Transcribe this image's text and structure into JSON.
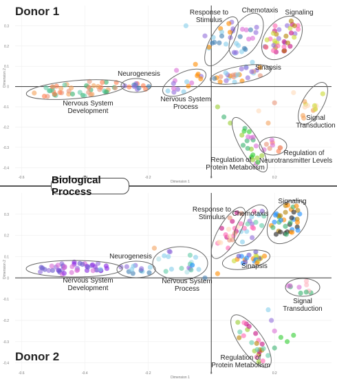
{
  "shared_title": "Biological Process",
  "chart_data": [
    {
      "type": "scatter",
      "title": "Donor 1",
      "xlabel": "Dimension 1",
      "ylabel": "Dimension 2",
      "xlim": [
        -0.62,
        0.38
      ],
      "ylim": [
        -0.45,
        0.4
      ],
      "xticks": [
        -0.6,
        -0.4,
        -0.2,
        0,
        0.2
      ],
      "xtick_labels": [
        "-0.6",
        "-0.4",
        "-0.2",
        "0",
        "0.2"
      ],
      "yticks": [
        0.3,
        0.2,
        0.1,
        0,
        -0.1,
        -0.2,
        -0.3,
        -0.4
      ],
      "ytick_labels": [
        "0.3",
        "0.2",
        "0.1",
        "0",
        "-0.1",
        "-0.2",
        "-0.3",
        "-0.4"
      ],
      "grid": true,
      "clusters": [
        {
          "name": "Nervous System Development",
          "cx": -0.45,
          "cy": -0.045,
          "rx": 0.17,
          "ry": 0.04,
          "rot": -5,
          "colors": [
            "#3cb371",
            "#e9967a",
            "#ff7f50",
            "#66cdaa",
            "#f4a460"
          ],
          "n": 46
        },
        {
          "name": "Neurogenesis",
          "cx": -0.205,
          "cy": -0.01,
          "rx": 0.04,
          "ry": 0.02,
          "rot": 0,
          "colors": [
            "#4682b4",
            "#9370db",
            "#ff7f50"
          ],
          "n": 12
        },
        {
          "name": "Nervous System Process",
          "cx": -0.15,
          "cy": 0.02,
          "rx": 0.06,
          "ry": 0.03,
          "rot": -25,
          "colors": [
            "#ff8c00",
            "#9370db",
            "#87ceeb",
            "#da70d6"
          ],
          "n": 14
        },
        {
          "name": "Response to Stimulus",
          "cx": 0.005,
          "cy": 0.17,
          "rx": 0.045,
          "ry": 0.095,
          "rot": 30,
          "colors": [
            "#9370db",
            "#87ceeb",
            "#ff8c00",
            "#4682b4"
          ],
          "n": 16
        },
        {
          "name": "Chemotaxis",
          "cx": 0.09,
          "cy": 0.24,
          "rx": 0.06,
          "ry": 0.08,
          "rot": 30,
          "colors": [
            "#da70d6",
            "#4682b4",
            "#87ceeb",
            "#9370db"
          ],
          "n": 16
        },
        {
          "name": "Signaling",
          "cx": 0.225,
          "cy": 0.22,
          "rx": 0.065,
          "ry": 0.1,
          "rot": 35,
          "colors": [
            "#c71585",
            "#ff69b4",
            "#b8860b",
            "#cddc39",
            "#9370db"
          ],
          "n": 38
        },
        {
          "name": "Sinapsis",
          "cx": 0.09,
          "cy": 0.05,
          "rx": 0.09,
          "ry": 0.03,
          "rot": -10,
          "colors": [
            "#87ceeb",
            "#9370db",
            "#ff8c00",
            "#e9967a"
          ],
          "n": 26
        },
        {
          "name": "Signal Transduction",
          "cx": 0.325,
          "cy": -0.09,
          "rx": 0.04,
          "ry": 0.1,
          "rot": 30,
          "colors": [
            "#f4a460",
            "#ffdab9",
            "#cddc39"
          ],
          "n": 14
        },
        {
          "name": "Regulation of Neurotransmitter Levels",
          "cx": 0.23,
          "cy": -0.26,
          "rx": 0.045,
          "ry": 0.03,
          "rot": 0,
          "colors": [
            "#ff7f50",
            "#e9967a",
            "#da70d6"
          ],
          "n": 9
        },
        {
          "name": "Regulation of Protein Metabolism",
          "cx": 0.11,
          "cy": -0.28,
          "rx": 0.035,
          "ry": 0.1,
          "rot": -30,
          "colors": [
            "#32cd32",
            "#da70d6",
            "#9acd32",
            "#3cb371"
          ],
          "n": 20
        }
      ],
      "scatter_extra": [
        {
          "x": -0.08,
          "y": 0.3,
          "c": "#87ceeb"
        },
        {
          "x": -0.02,
          "y": 0.25,
          "c": "#9370db"
        },
        {
          "x": -0.05,
          "y": 0.11,
          "c": "#ff8c00"
        },
        {
          "x": 0.02,
          "y": -0.1,
          "c": "#9acd32"
        },
        {
          "x": 0.04,
          "y": -0.15,
          "c": "#3cb371"
        },
        {
          "x": 0.06,
          "y": -0.18,
          "c": "#9acd32"
        },
        {
          "x": 0.15,
          "y": -0.12,
          "c": "#ffdab9"
        },
        {
          "x": 0.18,
          "y": -0.18,
          "c": "#f4a460"
        },
        {
          "x": 0.2,
          "y": -0.08,
          "c": "#e9967a"
        },
        {
          "x": 0.26,
          "y": -0.03,
          "c": "#ffdab9"
        },
        {
          "x": -0.3,
          "y": 0.02,
          "c": "#ff7f50"
        },
        {
          "x": -0.11,
          "y": 0.08,
          "c": "#da70d6"
        },
        {
          "x": 0.01,
          "y": 0.04,
          "c": "#4682b4"
        },
        {
          "x": 0.13,
          "y": 0.12,
          "c": "#87ceeb"
        }
      ]
    },
    {
      "type": "scatter",
      "title": "Donor 2",
      "xlabel": "Dimension 1",
      "ylabel": "Dimension 2",
      "xlim": [
        -0.62,
        0.38
      ],
      "ylim": [
        -0.45,
        0.4
      ],
      "xticks": [
        -0.6,
        -0.4,
        -0.2,
        0,
        0.2
      ],
      "xtick_labels": [
        "-0.6",
        "-0.4",
        "-0.2",
        "0",
        "0.2"
      ],
      "yticks": [
        0.3,
        0.2,
        0.1,
        0,
        -0.1,
        -0.2,
        -0.3,
        -0.4
      ],
      "ytick_labels": [
        "0.3",
        "0.2",
        "0.1",
        "0",
        "-0.1",
        "-0.2",
        "-0.3",
        "-0.4"
      ],
      "grid": true,
      "clusters": [
        {
          "name": "Nervous System Development",
          "cx": -0.47,
          "cy": -0.005,
          "rx": 0.15,
          "ry": 0.03,
          "rot": 0,
          "colors": [
            "#8a2be2",
            "#9370db",
            "#6a5acd",
            "#da70d6"
          ],
          "n": 44
        },
        {
          "name": "Neurogenesis",
          "cx": -0.255,
          "cy": 0.0,
          "rx": 0.04,
          "ry": 0.025,
          "rot": 0,
          "colors": [
            "#4682b4",
            "#87ceeb",
            "#9370db"
          ],
          "n": 12
        },
        {
          "name": "Nervous System Process",
          "cx": -0.13,
          "cy": 0.02,
          "rx": 0.07,
          "ry": 0.055,
          "rot": 0,
          "colors": [
            "#87ceeb",
            "#66cdaa",
            "#9370db",
            "#b0e0e6"
          ],
          "n": 18
        },
        {
          "name": "Response to Stimulus",
          "cx": 0.05,
          "cy": 0.17,
          "rx": 0.04,
          "ry": 0.11,
          "rot": 30,
          "colors": [
            "#ff69b4",
            "#e9967a",
            "#ffdab9",
            "#c71585"
          ],
          "n": 20
        },
        {
          "name": "Chemotaxis",
          "cx": 0.115,
          "cy": 0.17,
          "rx": 0.05,
          "ry": 0.08,
          "rot": 35,
          "colors": [
            "#87ceeb",
            "#ff69b4",
            "#9370db",
            "#66cdaa"
          ],
          "n": 18
        },
        {
          "name": "Signaling",
          "cx": 0.245,
          "cy": 0.22,
          "rx": 0.065,
          "ry": 0.1,
          "rot": 40,
          "colors": [
            "#ff8c00",
            "#222222",
            "#1e90ff",
            "#b8860b",
            "#3cb371"
          ],
          "n": 38
        },
        {
          "name": "Sinapsis",
          "cx": 0.12,
          "cy": 0.04,
          "rx": 0.07,
          "ry": 0.035,
          "rot": -10,
          "colors": [
            "#6a5acd",
            "#ff8c00",
            "#cddc39",
            "#1e90ff"
          ],
          "n": 22
        },
        {
          "name": "Signal Transduction",
          "cx": 0.305,
          "cy": -0.095,
          "rx": 0.06,
          "ry": 0.035,
          "rot": 0,
          "colors": [
            "#3cb371",
            "#ffb6c1",
            "#da70d6"
          ],
          "n": 10
        },
        {
          "name": "Regulation of Protein Metabolism",
          "cx": 0.08,
          "cy": -0.34,
          "rx": 0.04,
          "ry": 0.11,
          "rot": -30,
          "colors": [
            "#b8860b",
            "#c71585",
            "#ff69b4",
            "#66cdaa",
            "#9acd32"
          ],
          "n": 24
        }
      ],
      "scatter_extra": [
        {
          "x": -0.18,
          "y": 0.14,
          "c": "#f4a460"
        },
        {
          "x": 0.18,
          "y": -0.15,
          "c": "#87ceeb"
        },
        {
          "x": 0.19,
          "y": -0.2,
          "c": "#9370db"
        },
        {
          "x": 0.2,
          "y": -0.25,
          "c": "#da70d6"
        },
        {
          "x": 0.22,
          "y": -0.28,
          "c": "#32cd32"
        },
        {
          "x": 0.24,
          "y": -0.3,
          "c": "#32cd32"
        },
        {
          "x": 0.26,
          "y": -0.27,
          "c": "#32cd32"
        },
        {
          "x": 0.2,
          "y": -0.33,
          "c": "#3cb371"
        },
        {
          "x": -0.06,
          "y": 0.06,
          "c": "#1e90ff"
        },
        {
          "x": -0.02,
          "y": 0.0,
          "c": "#4682b4"
        },
        {
          "x": -0.35,
          "y": 0.04,
          "c": "#87ceeb"
        },
        {
          "x": 0.02,
          "y": 0.02,
          "c": "#ff8c00"
        }
      ]
    }
  ]
}
